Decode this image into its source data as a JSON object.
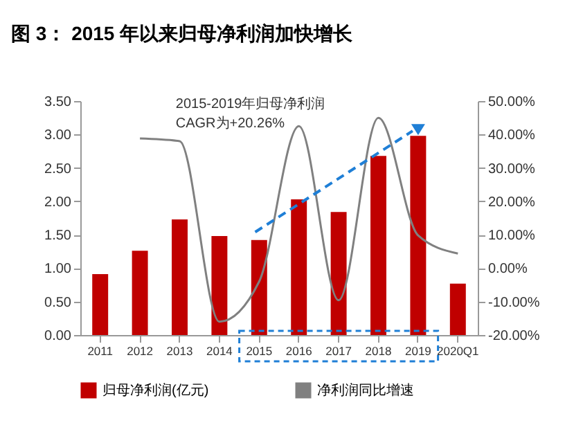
{
  "chart_data": {
    "type": "bar",
    "title": "图 3：  2015 年以来归母净利润加快增长",
    "annotations": [
      "2015-2019年归母净利润",
      "CAGR为+20.26%"
    ],
    "categories": [
      "2011",
      "2012",
      "2013",
      "2014",
      "2015",
      "2016",
      "2017",
      "2018",
      "2019",
      "2020Q1"
    ],
    "series": [
      {
        "name": "归母净利润(亿元)",
        "color": "#c00000",
        "values": [
          0.91,
          1.26,
          1.73,
          1.48,
          1.42,
          2.03,
          1.84,
          2.68,
          2.98,
          0.77
        ]
      },
      {
        "name": "净利润同比增速",
        "type": "line",
        "axis": "y2",
        "color": "#808080",
        "values": [
          null,
          38.8,
          38,
          -16,
          -4,
          42.5,
          -9.6,
          45,
          9.8,
          4.4
        ]
      }
    ],
    "ylim": [
      0,
      3.5
    ],
    "yticks": [
      {
        "value": 0,
        "label": "0.00"
      },
      {
        "value": 0.5,
        "label": "0.50"
      },
      {
        "value": 1,
        "label": "1.00"
      },
      {
        "value": 1.5,
        "label": "1.50"
      },
      {
        "value": 2,
        "label": "2.00"
      },
      {
        "value": 2.5,
        "label": "2.50"
      },
      {
        "value": 3,
        "label": "3.00"
      },
      {
        "value": 3.5,
        "label": "3.50"
      }
    ],
    "y2lim": [
      -20,
      50
    ],
    "y2ticks": [
      {
        "value": -20,
        "label": "-20.00%"
      },
      {
        "value": -10,
        "label": "-10.00%"
      },
      {
        "value": 0,
        "label": "0.00%"
      },
      {
        "value": 10,
        "label": "10.00%"
      },
      {
        "value": 20,
        "label": "20.00%"
      },
      {
        "value": 30,
        "label": "30.00%"
      },
      {
        "value": 40,
        "label": "40.00%"
      },
      {
        "value": 50,
        "label": "50.00%"
      }
    ],
    "grid": false,
    "legend": "bottom"
  }
}
